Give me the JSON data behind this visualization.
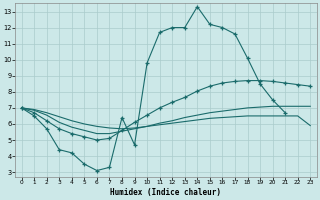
{
  "xlabel": "Humidex (Indice chaleur)",
  "bg_color": "#cce8e8",
  "grid_color": "#aacccc",
  "line_color": "#1a6b6b",
  "xlim": [
    -0.5,
    23.5
  ],
  "ylim": [
    2.7,
    13.5
  ],
  "xticks": [
    0,
    1,
    2,
    3,
    4,
    5,
    6,
    7,
    8,
    9,
    10,
    11,
    12,
    13,
    14,
    15,
    16,
    17,
    18,
    19,
    20,
    21,
    22,
    23
  ],
  "yticks": [
    3,
    4,
    5,
    6,
    7,
    8,
    9,
    10,
    11,
    12,
    13
  ],
  "curve1_x": [
    0,
    1,
    2,
    3,
    4,
    5,
    6,
    7,
    8,
    9,
    10,
    11,
    12,
    13,
    14,
    15,
    16,
    17,
    18,
    19,
    20,
    21
  ],
  "curve1_y": [
    7.0,
    6.5,
    5.7,
    4.4,
    4.2,
    3.5,
    3.1,
    3.3,
    6.4,
    4.7,
    9.8,
    11.7,
    12.0,
    12.0,
    13.3,
    12.2,
    12.0,
    11.6,
    10.1,
    8.5,
    7.5,
    6.7
  ],
  "curve2_x": [
    0,
    1,
    2,
    3,
    4,
    5,
    6,
    7,
    8,
    9,
    10,
    11,
    12,
    13,
    14,
    15,
    16,
    17,
    18,
    19,
    20,
    21,
    22,
    23
  ],
  "curve2_y": [
    7.0,
    6.7,
    6.2,
    5.7,
    5.4,
    5.2,
    5.0,
    5.1,
    5.6,
    6.1,
    6.55,
    7.0,
    7.35,
    7.65,
    8.05,
    8.35,
    8.55,
    8.65,
    8.7,
    8.7,
    8.65,
    8.55,
    8.45,
    8.35
  ],
  "curve3_x": [
    0,
    1,
    2,
    3,
    4,
    5,
    6,
    7,
    8,
    9,
    10,
    11,
    12,
    13,
    14,
    15,
    16,
    17,
    18,
    19,
    20,
    21,
    22,
    23
  ],
  "curve3_y": [
    7.0,
    6.85,
    6.55,
    6.1,
    5.8,
    5.6,
    5.4,
    5.4,
    5.55,
    5.7,
    5.85,
    6.05,
    6.2,
    6.4,
    6.55,
    6.7,
    6.8,
    6.9,
    7.0,
    7.05,
    7.1,
    7.1,
    7.1,
    7.1
  ],
  "curve4_x": [
    0,
    1,
    2,
    3,
    4,
    5,
    6,
    7,
    8,
    9,
    10,
    11,
    12,
    13,
    14,
    15,
    16,
    17,
    18,
    19,
    20,
    21,
    22,
    23
  ],
  "curve4_y": [
    7.0,
    6.9,
    6.7,
    6.45,
    6.2,
    6.0,
    5.85,
    5.75,
    5.7,
    5.75,
    5.85,
    5.95,
    6.05,
    6.15,
    6.25,
    6.35,
    6.4,
    6.45,
    6.5,
    6.5,
    6.5,
    6.5,
    6.5,
    5.9
  ]
}
